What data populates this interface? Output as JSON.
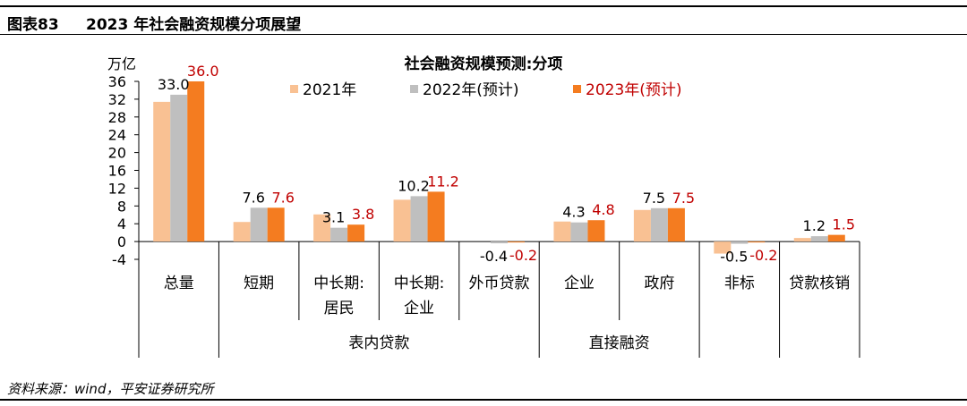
{
  "figure": {
    "number": "图表83",
    "title": "2023 年社会融资规模分项展望",
    "source": "资料来源：wind，平安证券研究所"
  },
  "chart_data": {
    "type": "bar",
    "title": "社会融资规模预测:分项",
    "ylabel": "万亿",
    "ylim": [
      -4,
      36
    ],
    "yticks": [
      -4,
      0,
      4,
      8,
      12,
      16,
      20,
      24,
      28,
      32,
      36
    ],
    "legend_position": "top",
    "categories": [
      "总量",
      "短期",
      "中长期:居民",
      "中长期:企业",
      "外币贷款",
      "企业",
      "政府",
      "非标",
      "贷款核销"
    ],
    "category_lines": [
      [
        "总量"
      ],
      [
        "短期"
      ],
      [
        "中长期:",
        "居民"
      ],
      [
        "中长期:",
        "企业"
      ],
      [
        "外币贷款"
      ],
      [
        "企业"
      ],
      [
        "政府"
      ],
      [
        "非标"
      ],
      [
        "贷款核销"
      ]
    ],
    "groups": [
      {
        "label": "表内贷款",
        "from": 1,
        "to": 4
      },
      {
        "label": "直接融资",
        "from": 5,
        "to": 6
      }
    ],
    "series": [
      {
        "name": "2021年",
        "color": "#f9c193",
        "values": [
          31.4,
          4.4,
          6.1,
          9.4,
          0.0,
          4.5,
          7.1,
          -2.7,
          0.8
        ]
      },
      {
        "name": "2022年(预计)",
        "color": "#bfbfbf",
        "values": [
          33.0,
          7.6,
          3.1,
          10.2,
          -0.4,
          4.3,
          7.5,
          -0.5,
          1.2
        ]
      },
      {
        "name": "2023年(预计)",
        "color": "#f47c20",
        "values": [
          36.0,
          7.6,
          3.8,
          11.2,
          -0.2,
          4.8,
          7.5,
          -0.2,
          1.5
        ]
      }
    ],
    "data_labels": [
      {
        "category": 0,
        "series": 1,
        "text": "33.0",
        "color": "#000000"
      },
      {
        "category": 0,
        "series": 2,
        "text": "36.0",
        "color": "#c00000"
      },
      {
        "category": 1,
        "series": 1,
        "text": "7.6",
        "color": "#000000"
      },
      {
        "category": 1,
        "series": 2,
        "text": "7.6",
        "color": "#c00000"
      },
      {
        "category": 2,
        "series": 1,
        "text": "3.1",
        "color": "#000000"
      },
      {
        "category": 2,
        "series": 2,
        "text": "3.8",
        "color": "#c00000"
      },
      {
        "category": 3,
        "series": 1,
        "text": "10.2",
        "color": "#000000"
      },
      {
        "category": 3,
        "series": 2,
        "text": "11.2",
        "color": "#c00000"
      },
      {
        "category": 4,
        "series": 1,
        "text": "-0.4",
        "color": "#000000"
      },
      {
        "category": 4,
        "series": 2,
        "text": "-0.2",
        "color": "#c00000"
      },
      {
        "category": 5,
        "series": 1,
        "text": "4.3",
        "color": "#000000"
      },
      {
        "category": 5,
        "series": 2,
        "text": "4.8",
        "color": "#c00000"
      },
      {
        "category": 6,
        "series": 1,
        "text": "7.5",
        "color": "#000000"
      },
      {
        "category": 6,
        "series": 2,
        "text": "7.5",
        "color": "#c00000"
      },
      {
        "category": 7,
        "series": 1,
        "text": "-0.5",
        "color": "#000000"
      },
      {
        "category": 7,
        "series": 2,
        "text": "-0.2",
        "color": "#c00000"
      },
      {
        "category": 8,
        "series": 1,
        "text": "1.2",
        "color": "#000000"
      },
      {
        "category": 8,
        "series": 2,
        "text": "1.5",
        "color": "#c00000"
      }
    ]
  }
}
